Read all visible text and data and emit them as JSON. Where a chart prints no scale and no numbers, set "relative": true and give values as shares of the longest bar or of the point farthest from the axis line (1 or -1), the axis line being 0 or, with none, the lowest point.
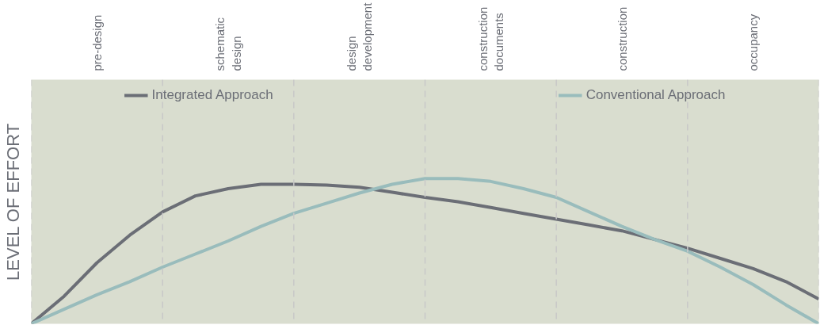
{
  "chart_data": {
    "type": "line",
    "relative": true,
    "ylabel": "LEVEL OF EFFORT",
    "categories": [
      null,
      null,
      "pre-design",
      null,
      null,
      null,
      "schematic\ndesign",
      null,
      null,
      null,
      "design\ndevelopment",
      null,
      null,
      null,
      "construction\ndocuments",
      null,
      null,
      null,
      "construction",
      null,
      null,
      null,
      "occupancy",
      null,
      null
    ],
    "legend": "top",
    "line_style": "solid",
    "grid": "x",
    "series": [
      {
        "name": "Integrated Approach",
        "color": "#6b6e76",
        "values": [
          0,
          0.19,
          0.42,
          0.61,
          0.77,
          0.88,
          0.93,
          0.96,
          0.96,
          0.955,
          0.94,
          0.905,
          0.87,
          0.84,
          0.8,
          0.76,
          0.72,
          0.68,
          0.64,
          0.58,
          0.52,
          0.45,
          0.38,
          0.29,
          0.17
        ]
      },
      {
        "name": "Conventional Approach",
        "color": "#99bcbc",
        "values": [
          0,
          0.1,
          0.2,
          0.29,
          0.39,
          0.48,
          0.57,
          0.67,
          0.76,
          0.83,
          0.9,
          0.96,
          1.0,
          1.0,
          0.98,
          0.93,
          0.87,
          0.77,
          0.67,
          0.58,
          0.5,
          0.39,
          0.27,
          0.13,
          0
        ]
      }
    ]
  }
}
